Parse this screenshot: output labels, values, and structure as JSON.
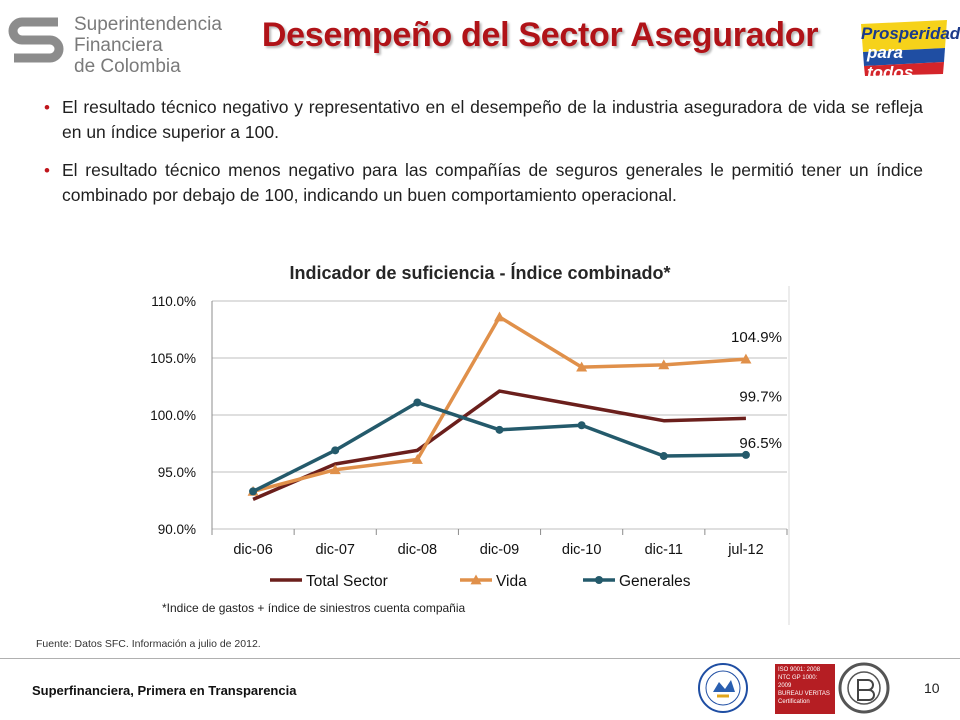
{
  "header": {
    "org_name_lines": [
      "Superintendencia",
      "Financiera",
      "de Colombia"
    ],
    "title": "Desempeño del Sector Asegurador",
    "campaign_logo_lines": [
      "Prosperidad",
      "para todos"
    ]
  },
  "bullets": [
    "El resultado técnico negativo y representativo en el desempeño de la industria aseguradora de vida se refleja en un índice superior a 100.",
    "El resultado técnico menos negativo para las compañías de seguros generales le permitió tener un índice combinado por debajo de 100, indicando un buen comportamiento operacional."
  ],
  "chart_data": {
    "type": "line",
    "title": "Indicador de suficiencia - Índice combinado*",
    "categories": [
      "dic-06",
      "dic-07",
      "dic-08",
      "dic-09",
      "dic-10",
      "dic-11",
      "jul-12"
    ],
    "ylim": [
      90,
      110
    ],
    "yticks": [
      90,
      95,
      100,
      105,
      110
    ],
    "ytick_labels": [
      "90.0%",
      "95.0%",
      "100.0%",
      "105.0%",
      "110.0%"
    ],
    "grid": true,
    "legend_position": "bottom",
    "series": [
      {
        "name": "Total Sector",
        "color": "#6b1f1c",
        "marker": "none",
        "values": [
          92.6,
          95.7,
          96.9,
          102.1,
          100.8,
          99.5,
          99.7
        ],
        "end_label": "99.7%"
      },
      {
        "name": "Vida",
        "color": "#e0904a",
        "marker": "triangle",
        "values": [
          93.3,
          95.2,
          96.1,
          108.6,
          104.2,
          104.4,
          104.9
        ],
        "end_label": "104.9%"
      },
      {
        "name": "Generales",
        "color": "#245a6b",
        "marker": "circle",
        "values": [
          93.3,
          96.9,
          101.1,
          98.7,
          99.1,
          96.4,
          96.5
        ],
        "end_label": "96.5%"
      }
    ],
    "footnote": "*Indice de gastos + índice de siniestros cuenta compañia"
  },
  "source": "Fuente: Datos SFC. Información a julio de 2012.",
  "footer": {
    "tagline": "Superfinanciera, Primera en Transparencia",
    "page_number": "10",
    "iso_badge_lines": [
      "ISO 9001: 2008",
      "NTC GP 1000: 2009",
      "BUREAU VERITAS",
      "Certification"
    ]
  }
}
